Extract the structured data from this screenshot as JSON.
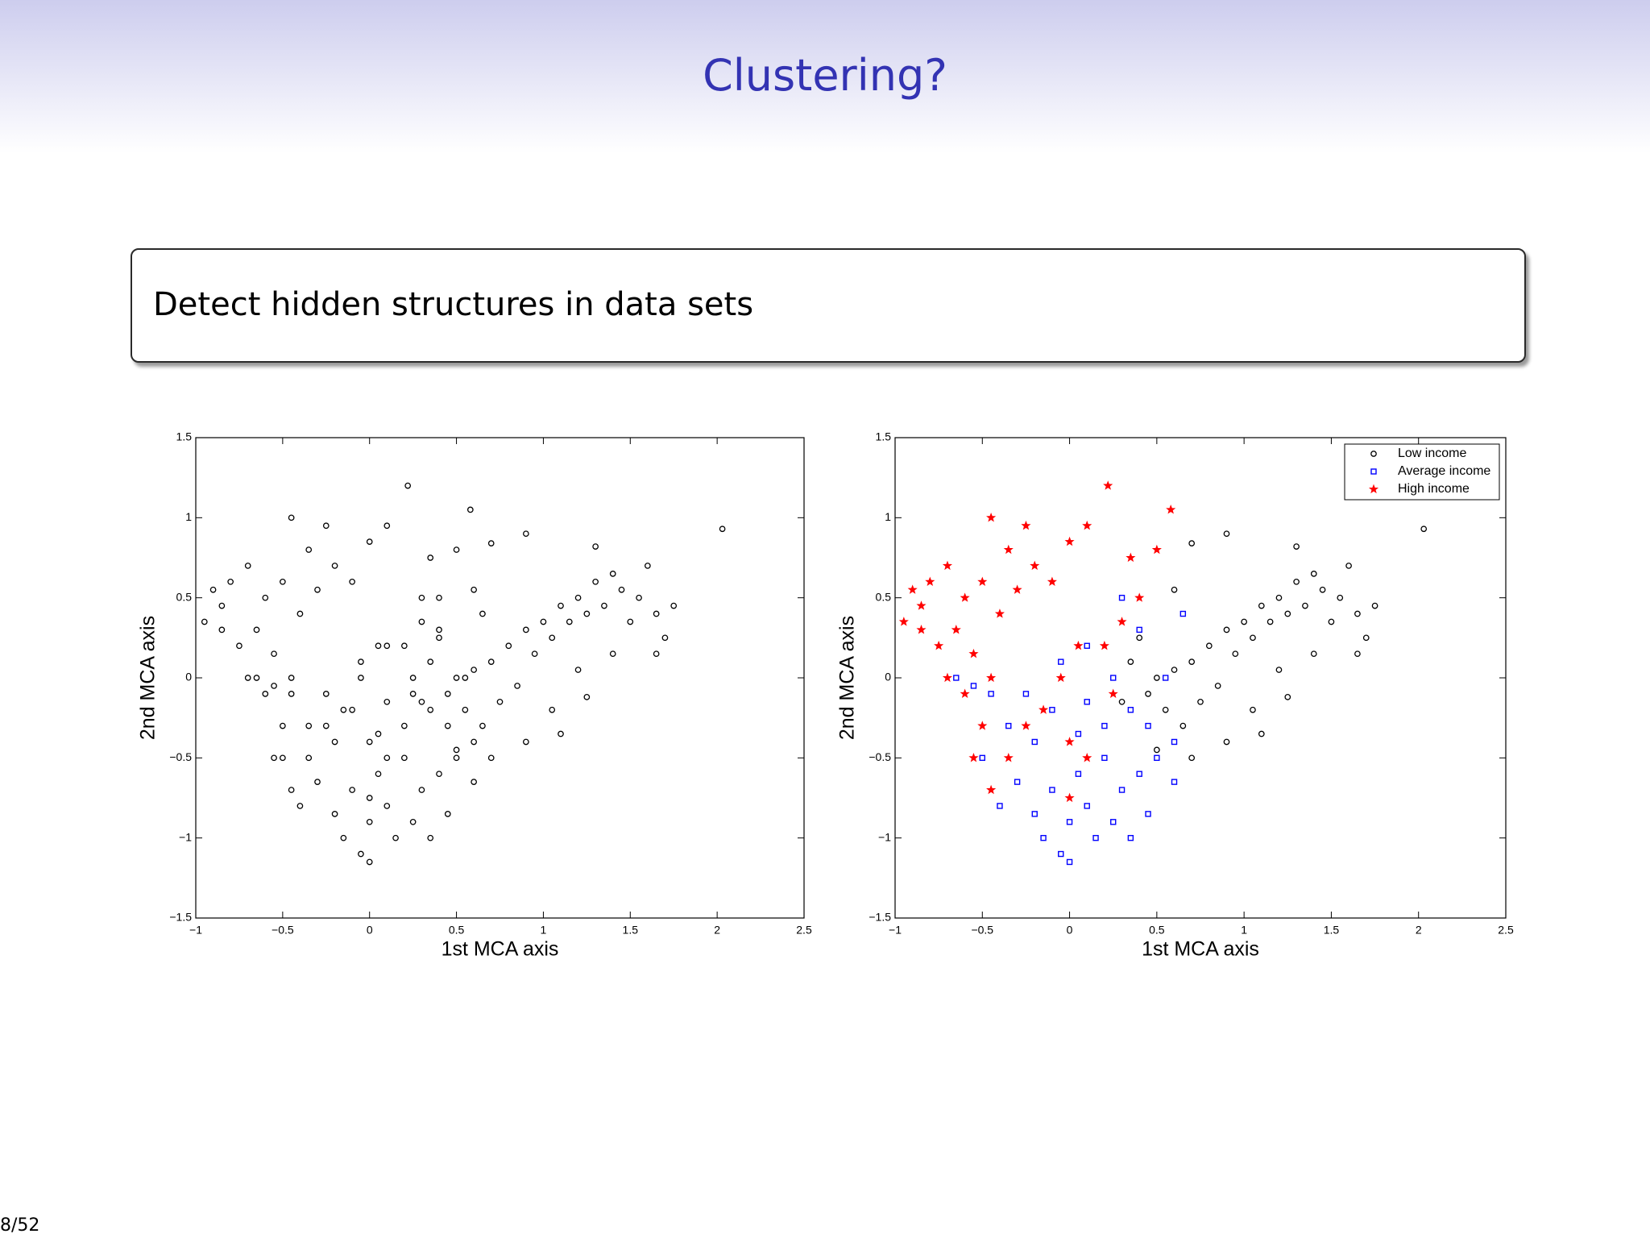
{
  "header": {
    "title": "Clustering?"
  },
  "block": {
    "text": "Detect hidden structures in data sets"
  },
  "footer": {
    "page": "8/52"
  },
  "chart_data": [
    {
      "type": "scatter",
      "xlabel": "1st MCA axis",
      "ylabel": "2nd MCA axis",
      "xlim": [
        -1,
        2.5
      ],
      "ylim": [
        -1.5,
        1.5
      ],
      "xticks": [
        {
          "value": -1,
          "label": "−1"
        },
        {
          "value": -0.5,
          "label": "−0.5"
        },
        0,
        0.5,
        1,
        1.5,
        2,
        2.5
      ],
      "yticks": [
        {
          "value": -1.5,
          "label": "−1.5"
        },
        {
          "value": -1,
          "label": "−1"
        },
        {
          "value": -0.5,
          "label": "−0.5"
        },
        0,
        0.5,
        1,
        1.5
      ],
      "series": [
        {
          "color": "#000000",
          "marker": "o",
          "x": [
            2.03,
            1.3,
            1.2,
            1.4,
            1.1,
            1.0,
            0.9,
            0.8,
            0.7,
            0.6,
            0.5,
            0.45,
            0.55,
            0.65,
            0.75,
            0.85,
            0.95,
            1.05,
            1.15,
            1.25,
            1.35,
            1.45,
            1.55,
            1.6,
            1.5,
            1.65,
            1.75,
            1.7,
            1.4,
            1.2,
            1.1,
            1.05,
            0.9,
            0.7,
            0.5,
            0.35,
            0.6,
            0.7,
            0.9,
            1.3,
            1.25,
            1.65,
            0.3,
            0.4,
            0.05,
            -0.1,
            0.1,
            0.2,
            -0.2,
            0.0,
            -0.15,
            0.15,
            0.3,
            0.4,
            0.5,
            0.6,
            0.45,
            0.35,
            0.25,
            0.1,
            -0.05,
            -0.25,
            -0.35,
            -0.45,
            -0.55,
            -0.65,
            -0.5,
            -0.3,
            -0.2,
            -0.05,
            0.0,
            0.25,
            0.45,
            0.2,
            0.05,
            0.6,
            0.55,
            0.4,
            0.3,
            0.65,
            -0.1,
            0.1,
            -0.4,
            0.35,
            -0.4,
            -0.3,
            -0.5,
            -0.6,
            -0.7,
            -0.8,
            -0.9,
            -0.95,
            -0.85,
            -0.65,
            -0.55,
            -0.45,
            -0.6,
            -0.5,
            -0.55,
            -0.45,
            -0.35,
            -0.25,
            -0.15,
            -0.05,
            0.05,
            0.0,
            0.1,
            -0.35,
            -0.25,
            -0.45,
            -0.2,
            -0.1,
            0.0,
            0.1,
            0.22,
            0.35,
            0.5,
            0.58,
            0.4,
            0.3,
            0.2,
            -0.75,
            -0.7,
            -0.85,
            0.0,
            0.25
          ],
          "y": [
            0.93,
            0.6,
            0.5,
            0.65,
            0.45,
            0.35,
            0.3,
            0.2,
            0.1,
            0.05,
            0.0,
            -0.1,
            -0.2,
            -0.3,
            -0.15,
            -0.05,
            0.15,
            0.25,
            0.35,
            0.4,
            0.45,
            0.55,
            0.5,
            0.7,
            0.35,
            0.4,
            0.45,
            0.25,
            0.15,
            0.05,
            -0.35,
            -0.2,
            -0.4,
            -0.5,
            -0.45,
            0.1,
            0.55,
            0.84,
            0.9,
            0.82,
            -0.12,
            0.15,
            -0.15,
            0.25,
            -0.6,
            -0.7,
            -0.8,
            -0.5,
            -0.4,
            -0.9,
            -1.0,
            -1.0,
            -0.7,
            -0.6,
            -0.5,
            -0.4,
            -0.3,
            -0.2,
            0.0,
            0.2,
            0.1,
            -0.1,
            -0.3,
            -0.1,
            -0.05,
            0.0,
            -0.5,
            -0.65,
            -0.85,
            -1.1,
            -1.15,
            -0.9,
            -0.85,
            -0.3,
            -0.35,
            -0.65,
            0.0,
            0.3,
            0.5,
            0.4,
            -0.2,
            -0.15,
            -0.8,
            -1.0,
            0.4,
            0.55,
            0.6,
            0.5,
            0.7,
            0.6,
            0.55,
            0.35,
            0.45,
            0.3,
            0.15,
            0.0,
            -0.1,
            -0.3,
            -0.5,
            -0.7,
            -0.5,
            -0.3,
            -0.2,
            0.0,
            0.2,
            -0.4,
            -0.5,
            0.8,
            0.95,
            1.0,
            0.7,
            0.6,
            0.85,
            0.95,
            1.2,
            0.75,
            0.8,
            1.05,
            0.5,
            0.35,
            0.2,
            0.2,
            0.0,
            0.3,
            -0.75,
            -0.1
          ]
        }
      ]
    },
    {
      "type": "scatter",
      "xlabel": "1st MCA axis",
      "ylabel": "2nd MCA axis",
      "xlim": [
        -1,
        2.5
      ],
      "ylim": [
        -1.5,
        1.5
      ],
      "xticks": [
        {
          "value": -1,
          "label": "−1"
        },
        {
          "value": -0.5,
          "label": "−0.5"
        },
        0,
        0.5,
        1,
        1.5,
        2,
        2.5
      ],
      "yticks": [
        {
          "value": -1.5,
          "label": "−1.5"
        },
        {
          "value": -1,
          "label": "−1"
        },
        {
          "value": -0.5,
          "label": "−0.5"
        },
        0,
        0.5,
        1,
        1.5
      ],
      "legend": "upper right",
      "series": [
        {
          "name": "Low income",
          "color": "#000000",
          "marker": "o",
          "x": [
            2.03,
            1.3,
            1.2,
            1.4,
            1.1,
            1.0,
            0.9,
            0.8,
            0.7,
            0.6,
            0.5,
            0.45,
            0.55,
            0.65,
            0.75,
            0.85,
            0.95,
            1.05,
            1.15,
            1.25,
            1.35,
            1.45,
            1.55,
            1.6,
            1.5,
            1.65,
            1.75,
            1.7,
            1.4,
            1.2,
            1.1,
            1.05,
            0.9,
            0.7,
            0.5,
            0.35,
            0.6,
            0.7,
            0.9,
            1.3,
            1.25,
            1.65,
            0.3,
            0.4
          ],
          "y": [
            0.93,
            0.6,
            0.5,
            0.65,
            0.45,
            0.35,
            0.3,
            0.2,
            0.1,
            0.05,
            0.0,
            -0.1,
            -0.2,
            -0.3,
            -0.15,
            -0.05,
            0.15,
            0.25,
            0.35,
            0.4,
            0.45,
            0.55,
            0.5,
            0.7,
            0.35,
            0.4,
            0.45,
            0.25,
            0.15,
            0.05,
            -0.35,
            -0.2,
            -0.4,
            -0.5,
            -0.45,
            0.1,
            0.55,
            0.84,
            0.9,
            0.82,
            -0.12,
            0.15,
            -0.15,
            0.25
          ]
        },
        {
          "name": "Average income",
          "color": "#0000ff",
          "marker": "s",
          "x": [
            0.05,
            -0.1,
            0.1,
            0.2,
            -0.2,
            0.0,
            -0.15,
            0.15,
            0.3,
            0.4,
            0.5,
            0.6,
            0.45,
            0.35,
            0.25,
            0.1,
            -0.05,
            -0.25,
            -0.35,
            -0.45,
            -0.55,
            -0.65,
            -0.5,
            -0.3,
            -0.2,
            -0.05,
            0.0,
            0.25,
            0.45,
            0.2,
            0.05,
            0.6,
            0.55,
            0.4,
            0.3,
            0.65,
            -0.1,
            0.1,
            -0.4,
            0.35
          ],
          "y": [
            -0.6,
            -0.7,
            -0.8,
            -0.5,
            -0.4,
            -0.9,
            -1.0,
            -1.0,
            -0.7,
            -0.6,
            -0.5,
            -0.4,
            -0.3,
            -0.2,
            0.0,
            0.2,
            0.1,
            -0.1,
            -0.3,
            -0.1,
            -0.05,
            0.0,
            -0.5,
            -0.65,
            -0.85,
            -1.1,
            -1.15,
            -0.9,
            -0.85,
            -0.3,
            -0.35,
            -0.65,
            0.0,
            0.3,
            0.5,
            0.4,
            -0.2,
            -0.15,
            -0.8,
            -1.0
          ]
        },
        {
          "name": "High income",
          "color": "#ff0000",
          "marker": "*",
          "x": [
            -0.4,
            -0.3,
            -0.5,
            -0.6,
            -0.7,
            -0.8,
            -0.9,
            -0.95,
            -0.85,
            -0.65,
            -0.55,
            -0.45,
            -0.6,
            -0.5,
            -0.55,
            -0.45,
            -0.35,
            -0.25,
            -0.15,
            -0.05,
            0.05,
            0.0,
            0.1,
            -0.35,
            -0.25,
            -0.45,
            -0.2,
            -0.1,
            0.0,
            0.1,
            0.22,
            0.35,
            0.5,
            0.58,
            0.4,
            0.3,
            0.2,
            -0.75,
            -0.7,
            -0.85,
            0.0,
            0.25
          ],
          "y": [
            0.4,
            0.55,
            0.6,
            0.5,
            0.7,
            0.6,
            0.55,
            0.35,
            0.45,
            0.3,
            0.15,
            0.0,
            -0.1,
            -0.3,
            -0.5,
            -0.7,
            -0.5,
            -0.3,
            -0.2,
            0.0,
            0.2,
            -0.4,
            -0.5,
            0.8,
            0.95,
            1.0,
            0.7,
            0.6,
            0.85,
            0.95,
            1.2,
            0.75,
            0.8,
            1.05,
            0.5,
            0.35,
            0.2,
            0.2,
            0.0,
            0.3,
            -0.75,
            -0.1
          ]
        }
      ]
    }
  ]
}
